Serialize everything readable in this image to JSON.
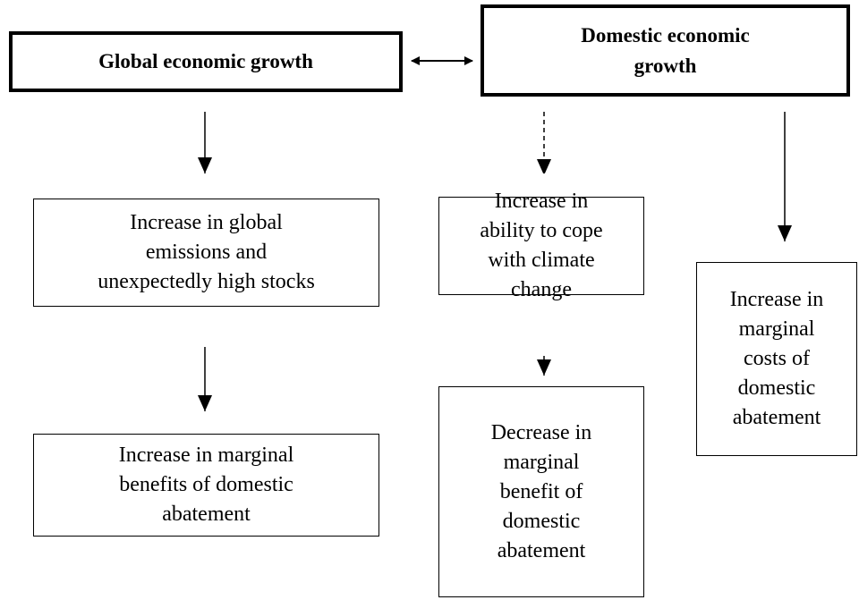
{
  "nodes": [
    {
      "lines": [
        "Global economic growth"
      ]
    },
    {
      "lines": [
        "Domestic economic",
        "growth"
      ]
    },
    {
      "lines": [
        "Increase in global",
        "emissions and",
        "unexpectedly high stocks"
      ]
    },
    {
      "lines": [
        "Increase in marginal",
        "benefits of domestic",
        "abatement"
      ]
    },
    {
      "lines": [
        "Increase in",
        "ability to cope",
        "with climate",
        "change"
      ]
    },
    {
      "lines": [
        "Decrease in",
        "marginal",
        "benefit of",
        "domestic",
        "abatement"
      ]
    },
    {
      "lines": [
        "Increase in",
        "marginal",
        "costs of",
        "domestic",
        "abatement"
      ]
    }
  ]
}
